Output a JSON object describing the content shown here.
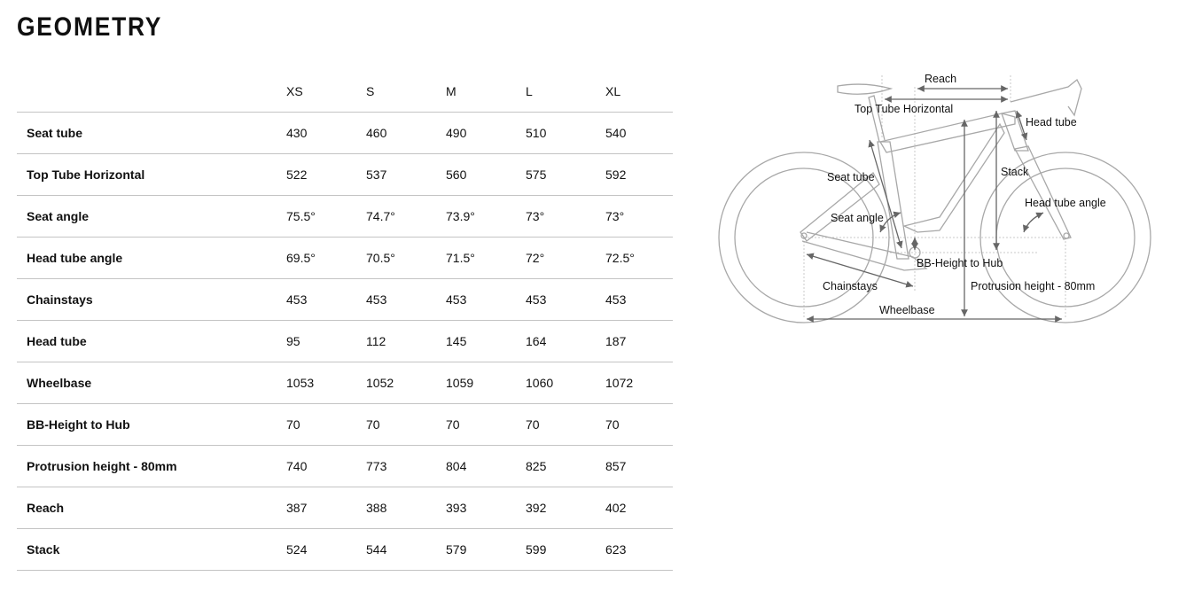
{
  "page_title": "GEOMETRY",
  "sizes": [
    "XS",
    "S",
    "M",
    "L",
    "XL"
  ],
  "rows": [
    {
      "label": "Seat tube",
      "values": [
        "430",
        "460",
        "490",
        "510",
        "540"
      ]
    },
    {
      "label": "Top Tube Horizontal",
      "values": [
        "522",
        "537",
        "560",
        "575",
        "592"
      ]
    },
    {
      "label": "Seat angle",
      "values": [
        "75.5°",
        "74.7°",
        "73.9°",
        "73°",
        "73°"
      ]
    },
    {
      "label": "Head tube angle",
      "values": [
        "69.5°",
        "70.5°",
        "71.5°",
        "72°",
        "72.5°"
      ]
    },
    {
      "label": "Chainstays",
      "values": [
        "453",
        "453",
        "453",
        "453",
        "453"
      ]
    },
    {
      "label": "Head tube",
      "values": [
        "95",
        "112",
        "145",
        "164",
        "187"
      ]
    },
    {
      "label": "Wheelbase",
      "values": [
        "1053",
        "1052",
        "1059",
        "1060",
        "1072"
      ]
    },
    {
      "label": "BB-Height to Hub",
      "values": [
        "70",
        "70",
        "70",
        "70",
        "70"
      ]
    },
    {
      "label": "Protrusion height - 80mm",
      "values": [
        "740",
        "773",
        "804",
        "825",
        "857"
      ]
    },
    {
      "label": "Reach",
      "values": [
        "387",
        "388",
        "393",
        "392",
        "402"
      ]
    },
    {
      "label": "Stack",
      "values": [
        "524",
        "544",
        "579",
        "599",
        "623"
      ]
    }
  ],
  "diagram": {
    "reach": "Reach",
    "top_tube": "Top Tube Horizontal",
    "head_tube": "Head tube",
    "seat_tube": "Seat tube",
    "stack": "Stack",
    "seat_angle": "Seat angle",
    "head_tube_angle": "Head tube angle",
    "bb_height": "BB-Height to Hub",
    "chainstays": "Chainstays",
    "protrusion": "Protrusion height - 80mm",
    "wheelbase": "Wheelbase"
  },
  "colors": {
    "line": "#c4c4c4",
    "bike": "#a0a0a0",
    "arrow": "#666666"
  }
}
